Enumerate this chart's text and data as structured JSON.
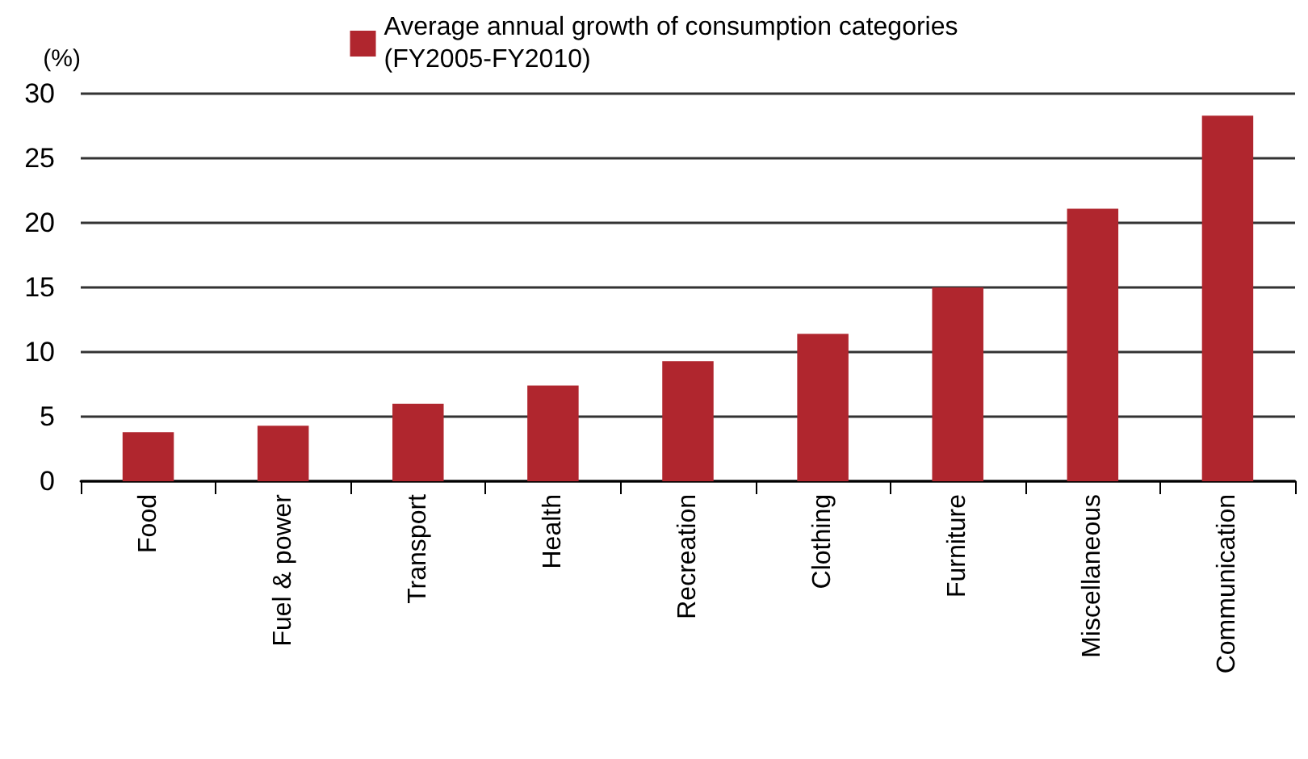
{
  "chart_data": {
    "type": "bar",
    "ylabel": "(%)",
    "categories": [
      "Food",
      "Fuel & power",
      "Transport",
      "Health",
      "Recreation",
      "Clothing",
      "Furniture",
      "Miscellaneous",
      "Communication"
    ],
    "series": [
      {
        "name": "Average annual growth of consumption categories\n(FY2005-FY2010)",
        "color": "#b0262e",
        "values": [
          3.8,
          4.3,
          6.0,
          7.4,
          9.3,
          11.4,
          15.0,
          21.1,
          28.3
        ]
      }
    ],
    "ylim": [
      0,
      30
    ],
    "yticks": [
      0,
      5,
      10,
      15,
      20,
      25,
      30
    ],
    "grid": "y",
    "legend": "top"
  }
}
